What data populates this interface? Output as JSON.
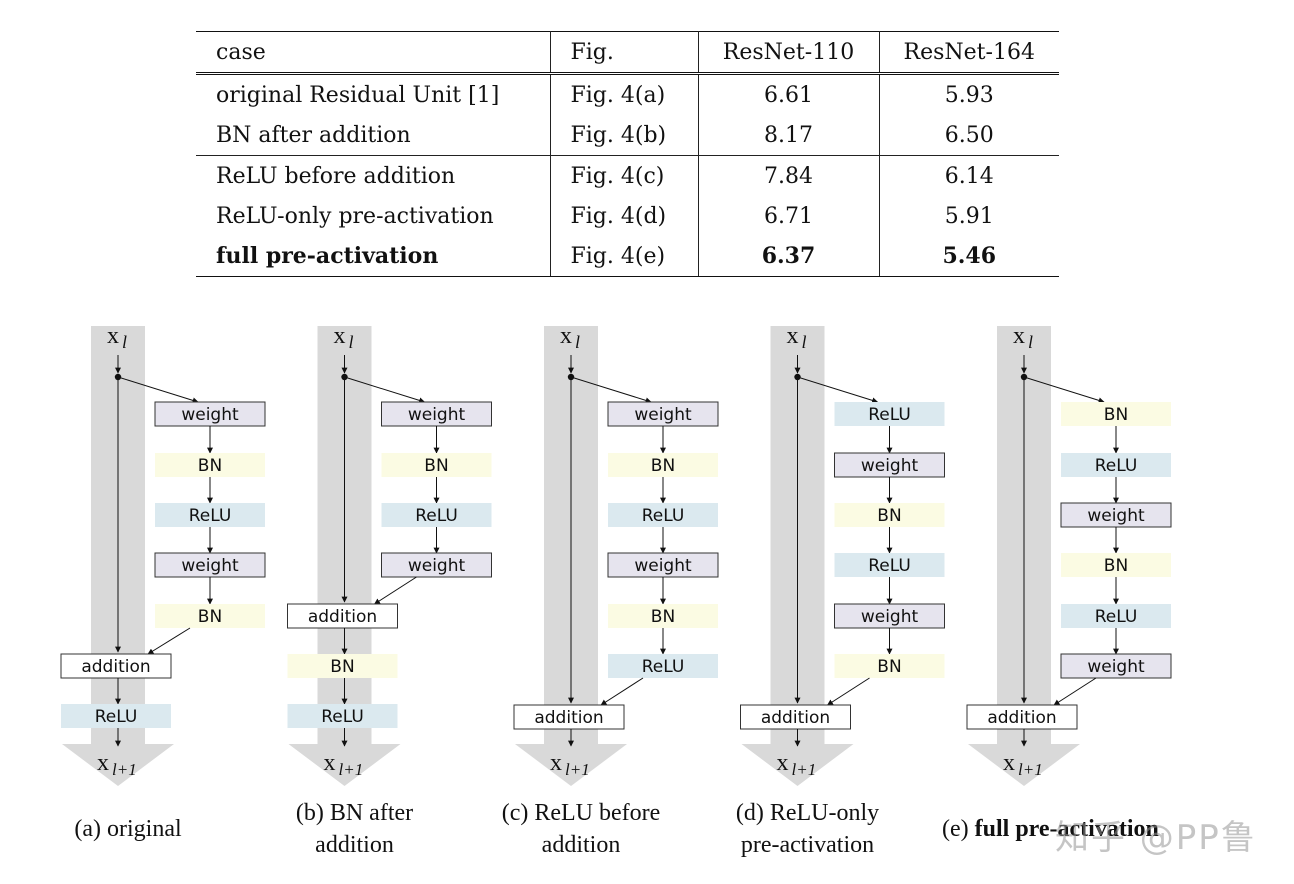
{
  "table": {
    "headers": [
      "case",
      "Fig.",
      "ResNet-110",
      "ResNet-164"
    ],
    "rows": [
      {
        "case": "original Residual Unit [1]",
        "fig": "Fig. 4(a)",
        "r110": "6.61",
        "r164": "5.93",
        "bold": false
      },
      {
        "case": "BN after addition",
        "fig": "Fig. 4(b)",
        "r110": "8.17",
        "r164": "6.50",
        "bold": false
      },
      {
        "case": "ReLU before addition",
        "fig": "Fig. 4(c)",
        "r110": "7.84",
        "r164": "6.14",
        "bold": false
      },
      {
        "case": "ReLU-only pre-activation",
        "fig": "Fig. 4(d)",
        "r110": "6.71",
        "r164": "5.91",
        "bold": false
      },
      {
        "case": "full pre-activation",
        "fig": "Fig. 4(e)",
        "r110": "6.37",
        "r164": "5.46",
        "bold": true
      }
    ]
  },
  "colors": {
    "weight": "#e6e4ee",
    "bn": "#fbfbe3",
    "relu": "#dbe9ef",
    "addition": "#ffffff",
    "highway": "#d9d9d9"
  },
  "diagram": {
    "input_label": "x",
    "input_sub": "l",
    "output_label": "x",
    "output_sub": "l+1",
    "block_text": {
      "weight": "weight",
      "bn": "BN",
      "relu": "ReLU",
      "addition": "addition"
    },
    "variants": [
      {
        "id": "a",
        "branch": [
          "weight",
          "bn",
          "relu",
          "weight",
          "bn"
        ],
        "post": [
          "relu"
        ],
        "caption_label": "(a) ",
        "caption_title": "original"
      },
      {
        "id": "b",
        "branch": [
          "weight",
          "bn",
          "relu",
          "weight"
        ],
        "post": [
          "bn",
          "relu"
        ],
        "caption_label": "(b) ",
        "caption_title": "BN after\naddition"
      },
      {
        "id": "c",
        "branch": [
          "weight",
          "bn",
          "relu",
          "weight",
          "bn",
          "relu"
        ],
        "post": [],
        "caption_label": "(c) ",
        "caption_title": "ReLU before\naddition"
      },
      {
        "id": "d",
        "branch": [
          "relu",
          "weight",
          "bn",
          "relu",
          "weight",
          "bn"
        ],
        "post": [],
        "caption_label": "(d) ",
        "caption_title": "ReLU-only\npre-activation"
      },
      {
        "id": "e",
        "branch": [
          "bn",
          "relu",
          "weight",
          "bn",
          "relu",
          "weight"
        ],
        "post": [],
        "caption_label": "(e) ",
        "caption_title": "full pre-activation",
        "caption_bold": true
      }
    ]
  },
  "watermark": "知乎 @PP鲁"
}
